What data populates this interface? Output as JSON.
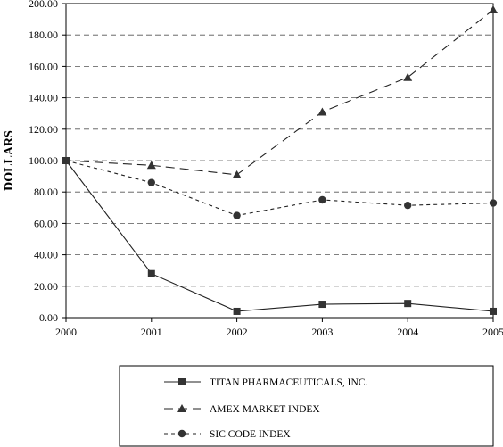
{
  "chart_data": {
    "type": "line",
    "ylabel": "DOLLARS",
    "xlabel": "",
    "x": [
      "2000",
      "2001",
      "2002",
      "2003",
      "2004",
      "2005"
    ],
    "ylim": [
      0,
      200
    ],
    "y_ticks": [
      "0.00",
      "20.00",
      "40.00",
      "60.00",
      "80.00",
      "100.00",
      "120.00",
      "140.00",
      "160.00",
      "180.00",
      "200.00"
    ],
    "grid": "horizontal dashed",
    "legend_position": "bottom",
    "series": [
      {
        "name": "TITAN PHARMACEUTICALS, INC.",
        "marker": "square",
        "line": "solid",
        "values": [
          100,
          28,
          4,
          8.5,
          9,
          4
        ]
      },
      {
        "name": "AMEX MARKET INDEX",
        "marker": "triangle",
        "line": "long-dash",
        "values": [
          100,
          97,
          91,
          131,
          153,
          196
        ]
      },
      {
        "name": "SIC CODE INDEX",
        "marker": "circle",
        "line": "short-dash",
        "values": [
          100,
          86,
          65,
          75,
          71.5,
          73
        ]
      }
    ]
  }
}
